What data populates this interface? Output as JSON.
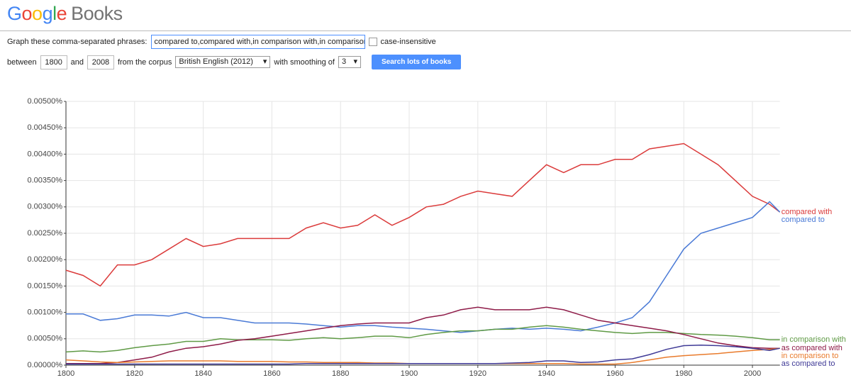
{
  "header": {
    "logo_letters": [
      "G",
      "o",
      "o",
      "g",
      "l",
      "e"
    ],
    "logo_suffix": "Books"
  },
  "form": {
    "phrases_label": "Graph these comma-separated phrases:",
    "phrases_value": "compared to,compared with,in comparison with,in comparison to,as",
    "case_label": "case-insensitive",
    "between_label": "between",
    "start_year": "1800",
    "and_label": "and",
    "end_year": "2008",
    "corpus_label": "from the corpus",
    "corpus_value": "British English (2012)",
    "smoothing_label": "with smoothing of",
    "smoothing_value": "3",
    "search_button": "Search lots of books"
  },
  "chart_data": {
    "type": "line",
    "grid": true,
    "legend": "right",
    "x": [
      1800,
      1805,
      1810,
      1815,
      1820,
      1825,
      1830,
      1835,
      1840,
      1845,
      1850,
      1855,
      1860,
      1865,
      1870,
      1875,
      1880,
      1885,
      1890,
      1895,
      1900,
      1905,
      1910,
      1915,
      1920,
      1925,
      1930,
      1935,
      1940,
      1945,
      1950,
      1955,
      1960,
      1965,
      1970,
      1975,
      1980,
      1985,
      1990,
      1995,
      2000,
      2005,
      2008
    ],
    "xlim": [
      1800,
      2008
    ],
    "xticks": [
      1800,
      1820,
      1840,
      1860,
      1880,
      1900,
      1920,
      1940,
      1960,
      1980,
      2000
    ],
    "ylim": [
      0,
      0.005
    ],
    "yticks": [
      {
        "value": 0,
        "label": "0.00000%"
      },
      {
        "value": 0.0005,
        "label": "0.00050%"
      },
      {
        "value": 0.001,
        "label": "0.00100%"
      },
      {
        "value": 0.0015,
        "label": "0.00150%"
      },
      {
        "value": 0.002,
        "label": "0.00200%"
      },
      {
        "value": 0.0025,
        "label": "0.00250%"
      },
      {
        "value": 0.003,
        "label": "0.00300%"
      },
      {
        "value": 0.0035,
        "label": "0.00350%"
      },
      {
        "value": 0.004,
        "label": "0.00400%"
      },
      {
        "value": 0.0045,
        "label": "0.00450%"
      },
      {
        "value": 0.005,
        "label": "0.00500%"
      }
    ],
    "series": [
      {
        "name": "compared with",
        "color": "#db3b3b",
        "values": [
          0.0018,
          0.0017,
          0.0015,
          0.0019,
          0.0019,
          0.002,
          0.0022,
          0.0024,
          0.00225,
          0.0023,
          0.0024,
          0.0024,
          0.0024,
          0.0024,
          0.0026,
          0.0027,
          0.0026,
          0.00265,
          0.00285,
          0.00265,
          0.0028,
          0.003,
          0.00305,
          0.0032,
          0.0033,
          0.00325,
          0.0032,
          0.0035,
          0.0038,
          0.00365,
          0.0038,
          0.0038,
          0.0039,
          0.0039,
          0.0041,
          0.00415,
          0.0042,
          0.004,
          0.0038,
          0.0035,
          0.0032,
          0.00305,
          0.0029
        ]
      },
      {
        "name": "compared to",
        "color": "#4a7ad6",
        "values": [
          0.00097,
          0.00097,
          0.00085,
          0.00088,
          0.00095,
          0.00095,
          0.00093,
          0.001,
          0.0009,
          0.0009,
          0.00085,
          0.0008,
          0.0008,
          0.0008,
          0.00078,
          0.00075,
          0.00072,
          0.00075,
          0.00075,
          0.00072,
          0.0007,
          0.00068,
          0.00065,
          0.00062,
          0.00065,
          0.00068,
          0.0007,
          0.00068,
          0.0007,
          0.00068,
          0.00065,
          0.00072,
          0.0008,
          0.0009,
          0.0012,
          0.0017,
          0.0022,
          0.0025,
          0.0026,
          0.0027,
          0.0028,
          0.0031,
          0.0029
        ]
      },
      {
        "name": "in comparison with",
        "color": "#5f9a45",
        "values": [
          0.00025,
          0.00027,
          0.00025,
          0.00028,
          0.00033,
          0.00037,
          0.0004,
          0.00045,
          0.00045,
          0.0005,
          0.00048,
          0.00048,
          0.00048,
          0.00047,
          0.0005,
          0.00052,
          0.0005,
          0.00052,
          0.00055,
          0.00055,
          0.00052,
          0.00058,
          0.00062,
          0.00065,
          0.00065,
          0.00068,
          0.00068,
          0.00072,
          0.00075,
          0.00072,
          0.00068,
          0.00065,
          0.00062,
          0.0006,
          0.00062,
          0.00062,
          0.0006,
          0.00058,
          0.00057,
          0.00055,
          0.00052,
          0.00048,
          0.00048
        ]
      },
      {
        "name": "as compared with",
        "color": "#8e1b48",
        "values": [
          3e-05,
          3e-05,
          3e-05,
          5e-05,
          0.0001,
          0.00015,
          0.00025,
          0.00032,
          0.00035,
          0.0004,
          0.00047,
          0.0005,
          0.00055,
          0.0006,
          0.00065,
          0.0007,
          0.00075,
          0.00078,
          0.0008,
          0.0008,
          0.0008,
          0.0009,
          0.00095,
          0.00105,
          0.0011,
          0.00105,
          0.00105,
          0.00105,
          0.0011,
          0.00105,
          0.00095,
          0.00085,
          0.0008,
          0.00075,
          0.0007,
          0.00065,
          0.00058,
          0.0005,
          0.00042,
          0.00037,
          0.00033,
          0.00032,
          0.00032
        ]
      },
      {
        "name": "in comparison to",
        "color": "#e97b2c",
        "values": [
          0.0001,
          8e-05,
          6e-05,
          5e-05,
          6e-05,
          7e-05,
          8e-05,
          8e-05,
          8e-05,
          8e-05,
          7e-05,
          7e-05,
          7e-05,
          6e-05,
          6e-05,
          5e-05,
          5e-05,
          5e-05,
          4e-05,
          4e-05,
          3e-05,
          3e-05,
          3e-05,
          3e-05,
          3e-05,
          3e-05,
          3e-05,
          3e-05,
          3e-05,
          3e-05,
          2e-05,
          2e-05,
          2e-05,
          5e-05,
          0.0001,
          0.00015,
          0.00018,
          0.0002,
          0.00022,
          0.00025,
          0.00028,
          0.0003,
          0.00032
        ]
      },
      {
        "name": "as compared to",
        "color": "#3f3a96",
        "values": [
          2e-05,
          2e-05,
          2e-05,
          2e-05,
          2e-05,
          2e-05,
          2e-05,
          2e-05,
          2e-05,
          2e-05,
          2e-05,
          2e-05,
          2e-05,
          2e-05,
          3e-05,
          3e-05,
          3e-05,
          3e-05,
          3e-05,
          3e-05,
          3e-05,
          3e-05,
          3e-05,
          3e-05,
          3e-05,
          3e-05,
          4e-05,
          5e-05,
          8e-05,
          8e-05,
          5e-05,
          6e-05,
          0.0001,
          0.00012,
          0.0002,
          0.0003,
          0.00037,
          0.00038,
          0.00037,
          0.00035,
          0.00032,
          0.00028,
          0.00032
        ]
      }
    ]
  }
}
